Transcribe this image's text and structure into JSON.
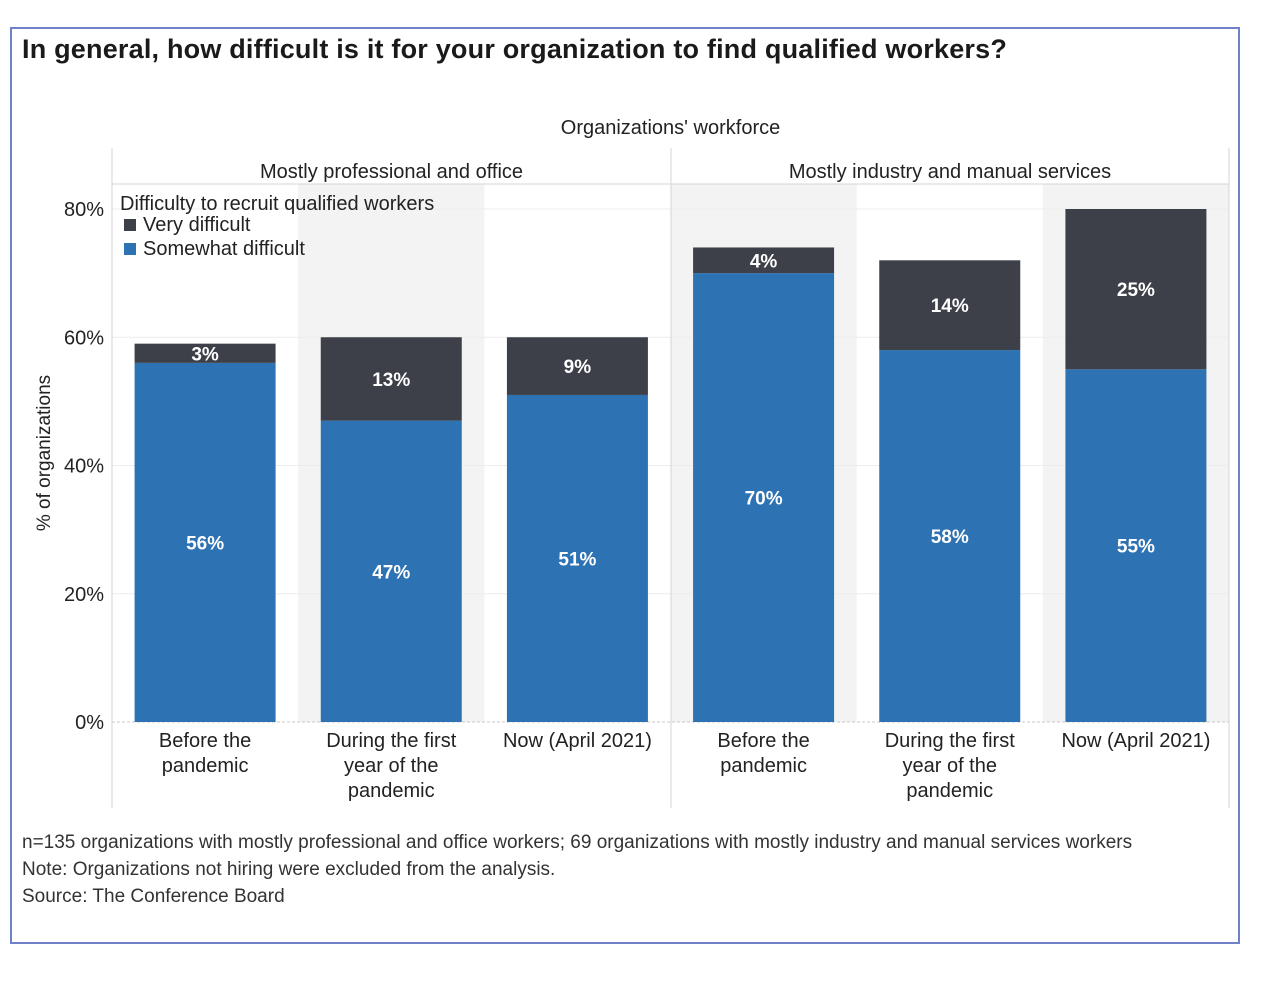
{
  "title": "In general, how difficult is it for your organization to find qualified workers?",
  "chart_data": {
    "type": "bar",
    "stacked": true,
    "top_header": "Organizations' workforce",
    "ylabel": "% of organizations",
    "ylim": [
      0,
      80
    ],
    "yticks": [
      0,
      20,
      40,
      60,
      80
    ],
    "ytick_labels": [
      "0%",
      "20%",
      "40%",
      "60%",
      "80%"
    ],
    "legend": {
      "title": "Difficulty to recruit qualified workers",
      "position": "top-left",
      "entries": [
        {
          "name": "Very difficult",
          "color": "#3d4049"
        },
        {
          "name": "Somewhat difficult",
          "color": "#2d72b2"
        }
      ]
    },
    "panels": [
      {
        "name": "Mostly professional and office",
        "categories": [
          "Before the pandemic",
          "During the first year of the pandemic",
          "Now (April 2021)"
        ],
        "category_lines": [
          [
            "Before the",
            "pandemic"
          ],
          [
            "During the first",
            "year of the",
            "pandemic"
          ],
          [
            "Now (April 2021)"
          ]
        ],
        "series": [
          {
            "name": "Somewhat difficult",
            "values": [
              56,
              47,
              51
            ],
            "labels": [
              "56%",
              "47%",
              "51%"
            ]
          },
          {
            "name": "Very difficult",
            "values": [
              3,
              13,
              9
            ],
            "labels": [
              "3%",
              "13%",
              "9%"
            ]
          }
        ]
      },
      {
        "name": "Mostly industry and manual services",
        "categories": [
          "Before the pandemic",
          "During the first year of the pandemic",
          "Now (April 2021)"
        ],
        "category_lines": [
          [
            "Before the",
            "pandemic"
          ],
          [
            "During the first",
            "year of the",
            "pandemic"
          ],
          [
            "Now (April 2021)"
          ]
        ],
        "series": [
          {
            "name": "Somewhat difficult",
            "values": [
              70,
              58,
              55
            ],
            "labels": [
              "70%",
              "58%",
              "55%"
            ]
          },
          {
            "name": "Very difficult",
            "values": [
              4,
              14,
              25
            ],
            "labels": [
              "4%",
              "14%",
              "25%"
            ]
          }
        ]
      }
    ]
  },
  "footnotes": [
    "n=135 organizations with mostly professional and office workers; 69 organizations with mostly industry and manual services workers",
    "Note: Organizations not hiring were excluded from the analysis.",
    "Source: The Conference Board"
  ],
  "colors": {
    "very_difficult": "#3d4049",
    "somewhat_difficult": "#2d72b2",
    "band": "#f3f3f3",
    "frame": "#6f82c9"
  }
}
